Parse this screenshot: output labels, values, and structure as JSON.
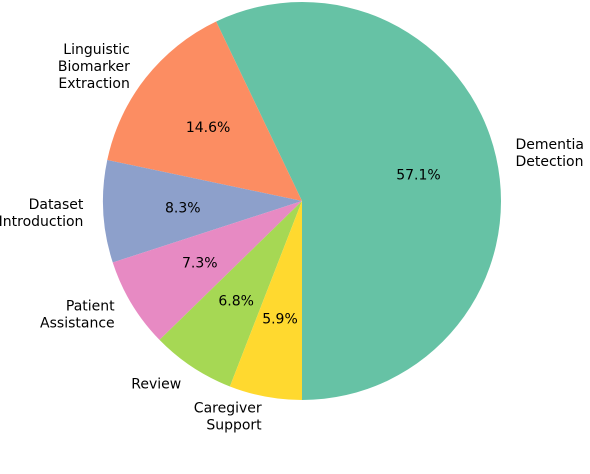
{
  "chart_data": {
    "type": "pie",
    "categories": [
      "Dementia\nDetection",
      "Linguistic\nBiomarker\nExtraction",
      "Dataset\nIntroduction",
      "Patient\nAssistance",
      "Review",
      "Caregiver\nSupport"
    ],
    "values": [
      57.1,
      14.6,
      8.3,
      7.3,
      6.8,
      5.9
    ],
    "value_labels": [
      "57.1%",
      "14.6%",
      "8.3%",
      "7.3%",
      "6.8%",
      "5.9%"
    ],
    "colors": [
      "#66c2a5",
      "#fc8d62",
      "#8da0cb",
      "#e78ac3",
      "#a6d854",
      "#ffd92f"
    ]
  }
}
